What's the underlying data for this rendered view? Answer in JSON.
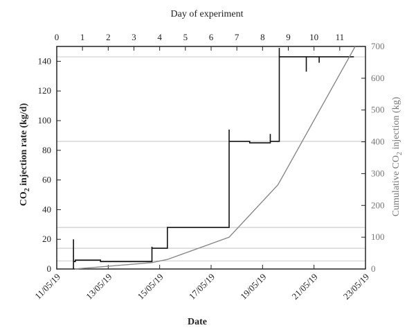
{
  "chart_data": {
    "type": "line",
    "top_axis": {
      "label": "Day of experiment",
      "ticks": [
        "0",
        "1",
        "2",
        "3",
        "4",
        "5",
        "6",
        "7",
        "8",
        "9",
        "10",
        "11"
      ],
      "range": [
        0,
        12
      ]
    },
    "bottom_axis": {
      "label": "Date",
      "ticks": [
        "11/05/19",
        "13/05/19",
        "15/05/19",
        "17/05/19",
        "19/05/19",
        "21/05/19",
        "23/05/19"
      ],
      "range": [
        "11/05/19",
        "23/05/19"
      ]
    },
    "left_axis": {
      "label_main": "CO",
      "label_sub": "2",
      "label_rest": " injection rate (kg/d)",
      "ticks": [
        "0",
        "20",
        "40",
        "60",
        "80",
        "100",
        "120",
        "140"
      ],
      "range": [
        0,
        150
      ]
    },
    "right_axis": {
      "label_main": "Cumulative CO",
      "label_sub": "2",
      "label_rest": " injection (kg)",
      "ticks": [
        "0",
        "100",
        "200",
        "300",
        "400",
        "500",
        "600",
        "700"
      ],
      "range": [
        0,
        700
      ],
      "color": "#777777"
    },
    "series": [
      {
        "axis": "left",
        "color": "#111111",
        "x": [
          0.65,
          0.65,
          0.65,
          0.65,
          0.65,
          0.65,
          0.72,
          0.72,
          1.7,
          1.7,
          3.7,
          3.7,
          3.7,
          3.7,
          4.3,
          4.3,
          6.7,
          6.7,
          6.7,
          6.7,
          7.5,
          7.5,
          8.3,
          8.3,
          8.3,
          8.3,
          8.65,
          8.65,
          8.65,
          8.65,
          9.7,
          9.7,
          9.7,
          10.2,
          10.2,
          10.2,
          11.55
        ],
        "y": [
          0,
          20,
          0,
          5,
          6,
          5,
          5,
          6,
          6,
          5,
          5,
          15,
          14,
          14,
          14,
          28,
          28,
          94,
          86,
          86,
          86,
          85,
          85,
          91,
          86,
          86,
          86,
          149,
          143,
          143,
          143,
          133,
          143,
          143,
          139,
          143,
          143
        ]
      },
      {
        "axis": "right",
        "color": "#888888",
        "x": [
          0.7,
          3.7,
          4.3,
          6.7,
          8.6,
          11.6
        ],
        "y": [
          0,
          20,
          30,
          100,
          265,
          700
        ]
      }
    ],
    "reference_lines": {
      "color": "#b8b8b8",
      "left_values": [
        5.5,
        14,
        28,
        86,
        143
      ]
    },
    "grid": false
  }
}
